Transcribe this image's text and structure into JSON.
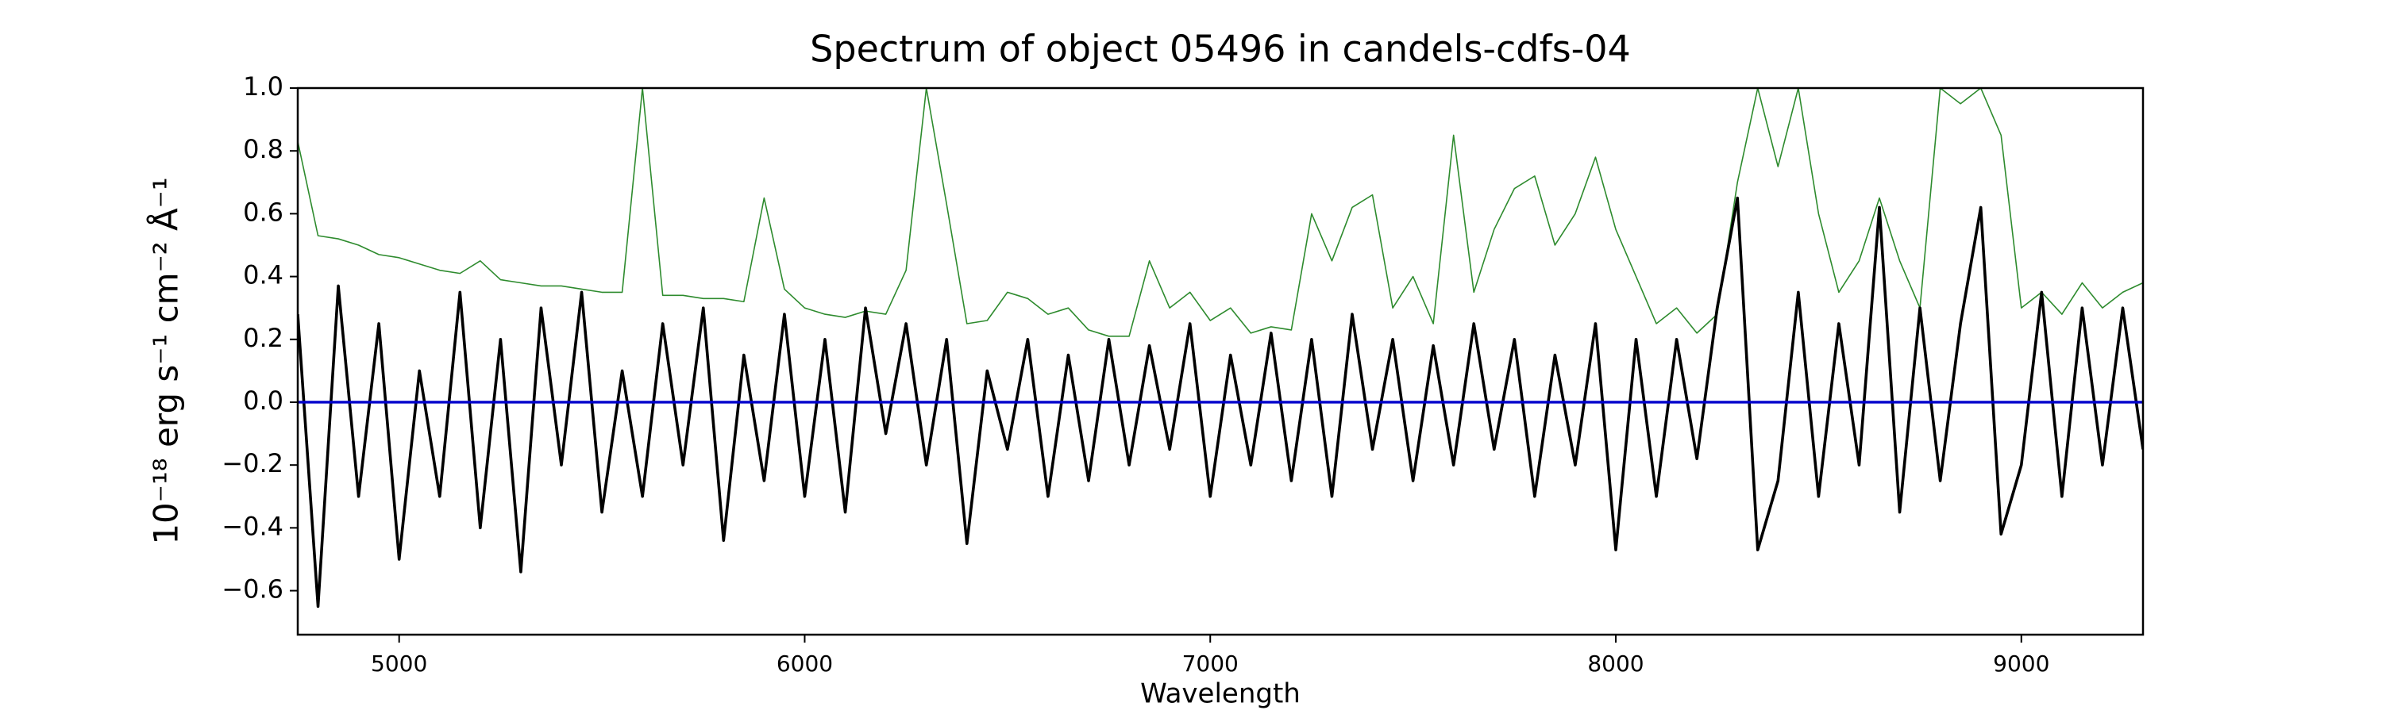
{
  "chart_data": {
    "type": "line",
    "title": "Spectrum of object 05496 in candels-cdfs-04",
    "x_label": "Wavelength",
    "y_label": "10⁻¹⁸ erg s⁻¹ cm⁻² Å⁻¹",
    "x": [
      4750,
      4800,
      4850,
      4900,
      4950,
      5000,
      5050,
      5100,
      5150,
      5200,
      5250,
      5300,
      5350,
      5400,
      5450,
      5500,
      5550,
      5600,
      5650,
      5700,
      5750,
      5800,
      5850,
      5900,
      5950,
      6000,
      6050,
      6100,
      6150,
      6200,
      6250,
      6300,
      6350,
      6400,
      6450,
      6500,
      6550,
      6600,
      6650,
      6700,
      6750,
      6800,
      6850,
      6900,
      6950,
      7000,
      7050,
      7100,
      7150,
      7200,
      7250,
      7300,
      7350,
      7400,
      7450,
      7500,
      7550,
      7600,
      7650,
      7700,
      7750,
      7800,
      7850,
      7900,
      7950,
      8000,
      8050,
      8100,
      8150,
      8200,
      8250,
      8300,
      8350,
      8400,
      8450,
      8500,
      8550,
      8600,
      8650,
      8700,
      8750,
      8800,
      8850,
      8900,
      8950,
      9000,
      9050,
      9100,
      9150,
      9200,
      9250,
      9300
    ],
    "series": [
      {
        "color": "#2e8b2e",
        "values": [
          0.83,
          0.53,
          0.52,
          0.5,
          0.47,
          0.46,
          0.44,
          0.42,
          0.41,
          0.45,
          0.39,
          0.38,
          0.37,
          0.37,
          0.36,
          0.35,
          0.35,
          1.0,
          0.34,
          0.34,
          0.33,
          0.33,
          0.32,
          0.65,
          0.36,
          0.3,
          0.28,
          0.27,
          0.29,
          0.28,
          0.42,
          1.0,
          0.63,
          0.25,
          0.26,
          0.35,
          0.33,
          0.28,
          0.3,
          0.23,
          0.21,
          0.21,
          0.45,
          0.3,
          0.35,
          0.26,
          0.3,
          0.22,
          0.24,
          0.23,
          0.6,
          0.45,
          0.62,
          0.66,
          0.3,
          0.4,
          0.25,
          0.85,
          0.35,
          0.55,
          0.68,
          0.72,
          0.5,
          0.6,
          0.78,
          0.55,
          0.4,
          0.25,
          0.3,
          0.22,
          0.28,
          0.7,
          1.0,
          0.75,
          1.0,
          0.6,
          0.35,
          0.45,
          0.65,
          0.45,
          0.3,
          1.0,
          0.95,
          1.0,
          0.85,
          0.3,
          0.35,
          0.28,
          0.38,
          0.3,
          0.35,
          0.38
        ]
      },
      {
        "color": "#000000",
        "values": [
          0.28,
          -0.65,
          0.37,
          -0.3,
          0.25,
          -0.5,
          0.1,
          -0.3,
          0.35,
          -0.4,
          0.2,
          -0.54,
          0.3,
          -0.2,
          0.35,
          -0.35,
          0.1,
          -0.3,
          0.25,
          -0.2,
          0.3,
          -0.44,
          0.15,
          -0.25,
          0.28,
          -0.3,
          0.2,
          -0.35,
          0.3,
          -0.1,
          0.25,
          -0.2,
          0.2,
          -0.45,
          0.1,
          -0.15,
          0.2,
          -0.3,
          0.15,
          -0.25,
          0.2,
          -0.2,
          0.18,
          -0.15,
          0.25,
          -0.3,
          0.15,
          -0.2,
          0.22,
          -0.25,
          0.2,
          -0.3,
          0.28,
          -0.15,
          0.2,
          -0.25,
          0.18,
          -0.2,
          0.25,
          -0.15,
          0.2,
          -0.3,
          0.15,
          -0.2,
          0.25,
          -0.47,
          0.2,
          -0.3,
          0.2,
          -0.18,
          0.3,
          0.65,
          -0.47,
          -0.25,
          0.35,
          -0.3,
          0.25,
          -0.2,
          0.62,
          -0.35,
          0.3,
          -0.25,
          0.25,
          0.62,
          -0.42,
          -0.2,
          0.35,
          -0.3,
          0.3,
          -0.2,
          0.3,
          -0.15
        ]
      },
      {
        "color": "#0000cc",
        "values": [
          0,
          0,
          0,
          0,
          0,
          0,
          0,
          0,
          0,
          0,
          0,
          0,
          0,
          0,
          0,
          0,
          0,
          0,
          0,
          0,
          0,
          0,
          0,
          0,
          0,
          0,
          0,
          0,
          0,
          0,
          0,
          0,
          0,
          0,
          0,
          0,
          0,
          0,
          0,
          0,
          0,
          0,
          0,
          0,
          0,
          0,
          0,
          0,
          0,
          0,
          0,
          0,
          0,
          0,
          0,
          0,
          0,
          0,
          0,
          0,
          0,
          0,
          0,
          0,
          0,
          0,
          0,
          0,
          0,
          0,
          0,
          0,
          0,
          0,
          0,
          0,
          0,
          0,
          0,
          0,
          0,
          0,
          0,
          0,
          0,
          0,
          0,
          0,
          0,
          0,
          0,
          0
        ]
      }
    ],
    "xlim": [
      4750,
      9300
    ],
    "ylim": [
      -0.74,
      1.0
    ],
    "xticks": [
      5000,
      6000,
      7000,
      8000,
      9000
    ],
    "yticks": [
      {
        "value": -0.6,
        "label": "−0.6"
      },
      {
        "value": -0.4,
        "label": "−0.4"
      },
      {
        "value": -0.2,
        "label": "−0.2"
      },
      {
        "value": 0,
        "label": "0.0"
      },
      {
        "value": 0.2,
        "label": "0.2"
      },
      {
        "value": 0.4,
        "label": "0.4"
      },
      {
        "value": 0.6,
        "label": "0.6"
      },
      {
        "value": 0.8,
        "label": "0.8"
      },
      {
        "value": 1.0,
        "label": "1.0"
      }
    ],
    "grid": false
  }
}
